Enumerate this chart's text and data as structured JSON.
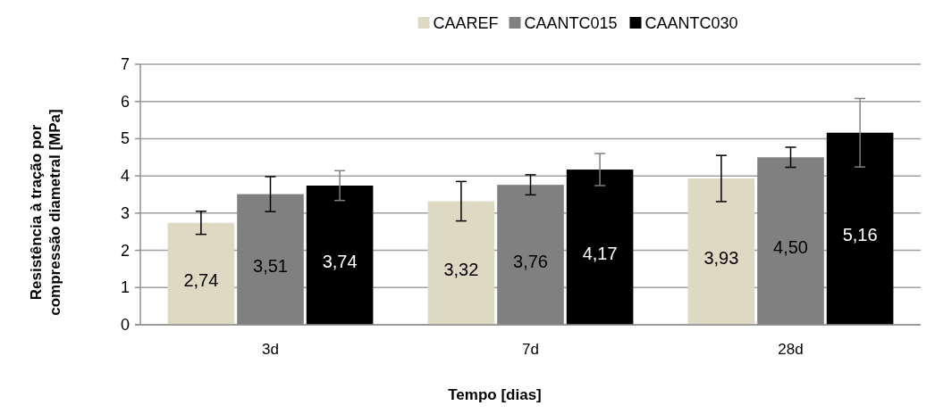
{
  "chart_data": {
    "type": "bar",
    "xlabel": "Tempo [dias]",
    "ylabel": "Resistência à tração por\ncompressão diametral [MPa]",
    "categories": [
      "3d",
      "7d",
      "28d"
    ],
    "series": [
      {
        "name": "CAAREF",
        "color": "#ddd9c3",
        "values": [
          2.74,
          3.32,
          3.93
        ],
        "errors": [
          0.31,
          0.53,
          0.62
        ],
        "value_labels": [
          "2,74",
          "3,32",
          "3,93"
        ]
      },
      {
        "name": "CAANTC015",
        "color": "#808080",
        "values": [
          3.51,
          3.76,
          4.5
        ],
        "errors": [
          0.47,
          0.27,
          0.27
        ],
        "value_labels": [
          "3,51",
          "3,76",
          "4,50"
        ]
      },
      {
        "name": "CAANTC030",
        "color": "#000000",
        "values": [
          3.74,
          4.17,
          5.16
        ],
        "errors": [
          0.4,
          0.43,
          0.92
        ],
        "value_labels": [
          "3,74",
          "4,17",
          "5,16"
        ]
      }
    ],
    "ylim": [
      0,
      7
    ],
    "yticks": [
      0,
      1,
      2,
      3,
      4,
      5,
      6,
      7
    ],
    "grid": "y",
    "legend": "top"
  }
}
